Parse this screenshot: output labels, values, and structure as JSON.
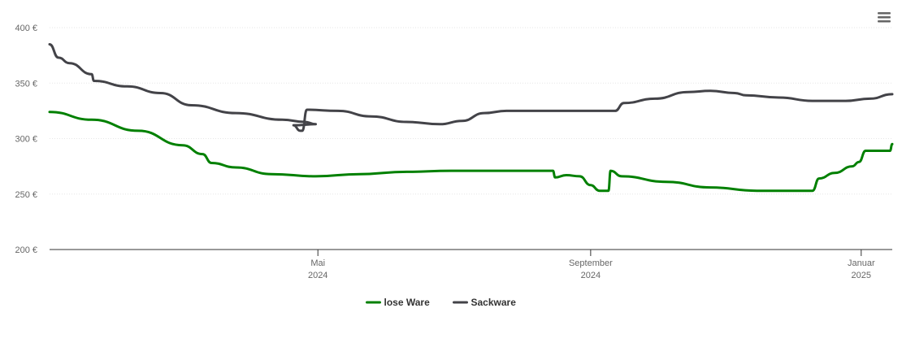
{
  "chart_data": {
    "type": "line",
    "title": "",
    "xlabel": "",
    "ylabel": "",
    "ylim": [
      200,
      400
    ],
    "y_ticks": [
      200,
      250,
      300,
      350,
      400
    ],
    "y_tick_suffix": " €",
    "x_range": [
      "2024-01-01",
      "2025-01-15"
    ],
    "x_ticks": [
      {
        "date": "2024-05-01",
        "line1": "Mai",
        "line2": "2024"
      },
      {
        "date": "2024-09-01",
        "line1": "September",
        "line2": "2024"
      },
      {
        "date": "2025-01-01",
        "line1": "Januar",
        "line2": "2025"
      }
    ],
    "grid": true,
    "legend_position": "bottom-center",
    "series": [
      {
        "name": "lose Ware",
        "color": "#008000",
        "points": [
          [
            "2024-01-01",
            324
          ],
          [
            "2024-01-20",
            317
          ],
          [
            "2024-02-10",
            307
          ],
          [
            "2024-03-01",
            294
          ],
          [
            "2024-03-10",
            286
          ],
          [
            "2024-03-14",
            278
          ],
          [
            "2024-03-25",
            274
          ],
          [
            "2024-04-10",
            268
          ],
          [
            "2024-04-30",
            266
          ],
          [
            "2024-05-20",
            268
          ],
          [
            "2024-06-10",
            270
          ],
          [
            "2024-06-30",
            271
          ],
          [
            "2024-07-20",
            271
          ],
          [
            "2024-08-10",
            271
          ],
          [
            "2024-08-15",
            271
          ],
          [
            "2024-08-16",
            265
          ],
          [
            "2024-08-21",
            267
          ],
          [
            "2024-08-27",
            266
          ],
          [
            "2024-09-01",
            258
          ],
          [
            "2024-09-05",
            253
          ],
          [
            "2024-09-09",
            253
          ],
          [
            "2024-09-10",
            271
          ],
          [
            "2024-09-15",
            266
          ],
          [
            "2024-10-05",
            261
          ],
          [
            "2024-10-25",
            256
          ],
          [
            "2024-11-15",
            253
          ],
          [
            "2024-12-03",
            253
          ],
          [
            "2024-12-10",
            253
          ],
          [
            "2024-12-13",
            264
          ],
          [
            "2024-12-20",
            269
          ],
          [
            "2024-12-28",
            275
          ],
          [
            "2024-12-31",
            279
          ],
          [
            "2025-01-03",
            289
          ],
          [
            "2025-01-14",
            289
          ],
          [
            "2025-01-15",
            295
          ]
        ]
      },
      {
        "name": "Sackware",
        "color": "#434348",
        "points": [
          [
            "2024-01-01",
            385
          ],
          [
            "2024-01-05",
            373
          ],
          [
            "2024-01-10",
            368
          ],
          [
            "2024-01-20",
            358
          ],
          [
            "2024-01-21",
            352
          ],
          [
            "2024-02-05",
            347
          ],
          [
            "2024-02-20",
            341
          ],
          [
            "2024-03-05",
            330
          ],
          [
            "2024-03-25",
            323
          ],
          [
            "2024-04-15",
            317
          ],
          [
            "2024-04-25",
            315
          ],
          [
            "2024-04-30",
            313
          ],
          [
            "2024-04-20",
            312
          ],
          [
            "2024-04-23",
            307
          ],
          [
            "2024-04-24",
            307
          ],
          [
            "2024-04-26",
            326
          ],
          [
            "2024-05-10",
            325
          ],
          [
            "2024-05-25",
            320
          ],
          [
            "2024-06-10",
            315
          ],
          [
            "2024-06-25",
            313
          ],
          [
            "2024-07-05",
            316
          ],
          [
            "2024-07-15",
            323
          ],
          [
            "2024-07-25",
            325
          ],
          [
            "2024-08-15",
            325
          ],
          [
            "2024-09-05",
            325
          ],
          [
            "2024-09-12",
            325
          ],
          [
            "2024-09-16",
            332
          ],
          [
            "2024-09-30",
            336
          ],
          [
            "2024-10-15",
            342
          ],
          [
            "2024-10-25",
            343
          ],
          [
            "2024-11-05",
            341
          ],
          [
            "2024-11-10",
            339
          ],
          [
            "2024-11-25",
            337
          ],
          [
            "2024-12-10",
            334
          ],
          [
            "2024-12-25",
            334
          ],
          [
            "2025-01-05",
            336
          ],
          [
            "2025-01-15",
            340
          ]
        ]
      }
    ]
  }
}
